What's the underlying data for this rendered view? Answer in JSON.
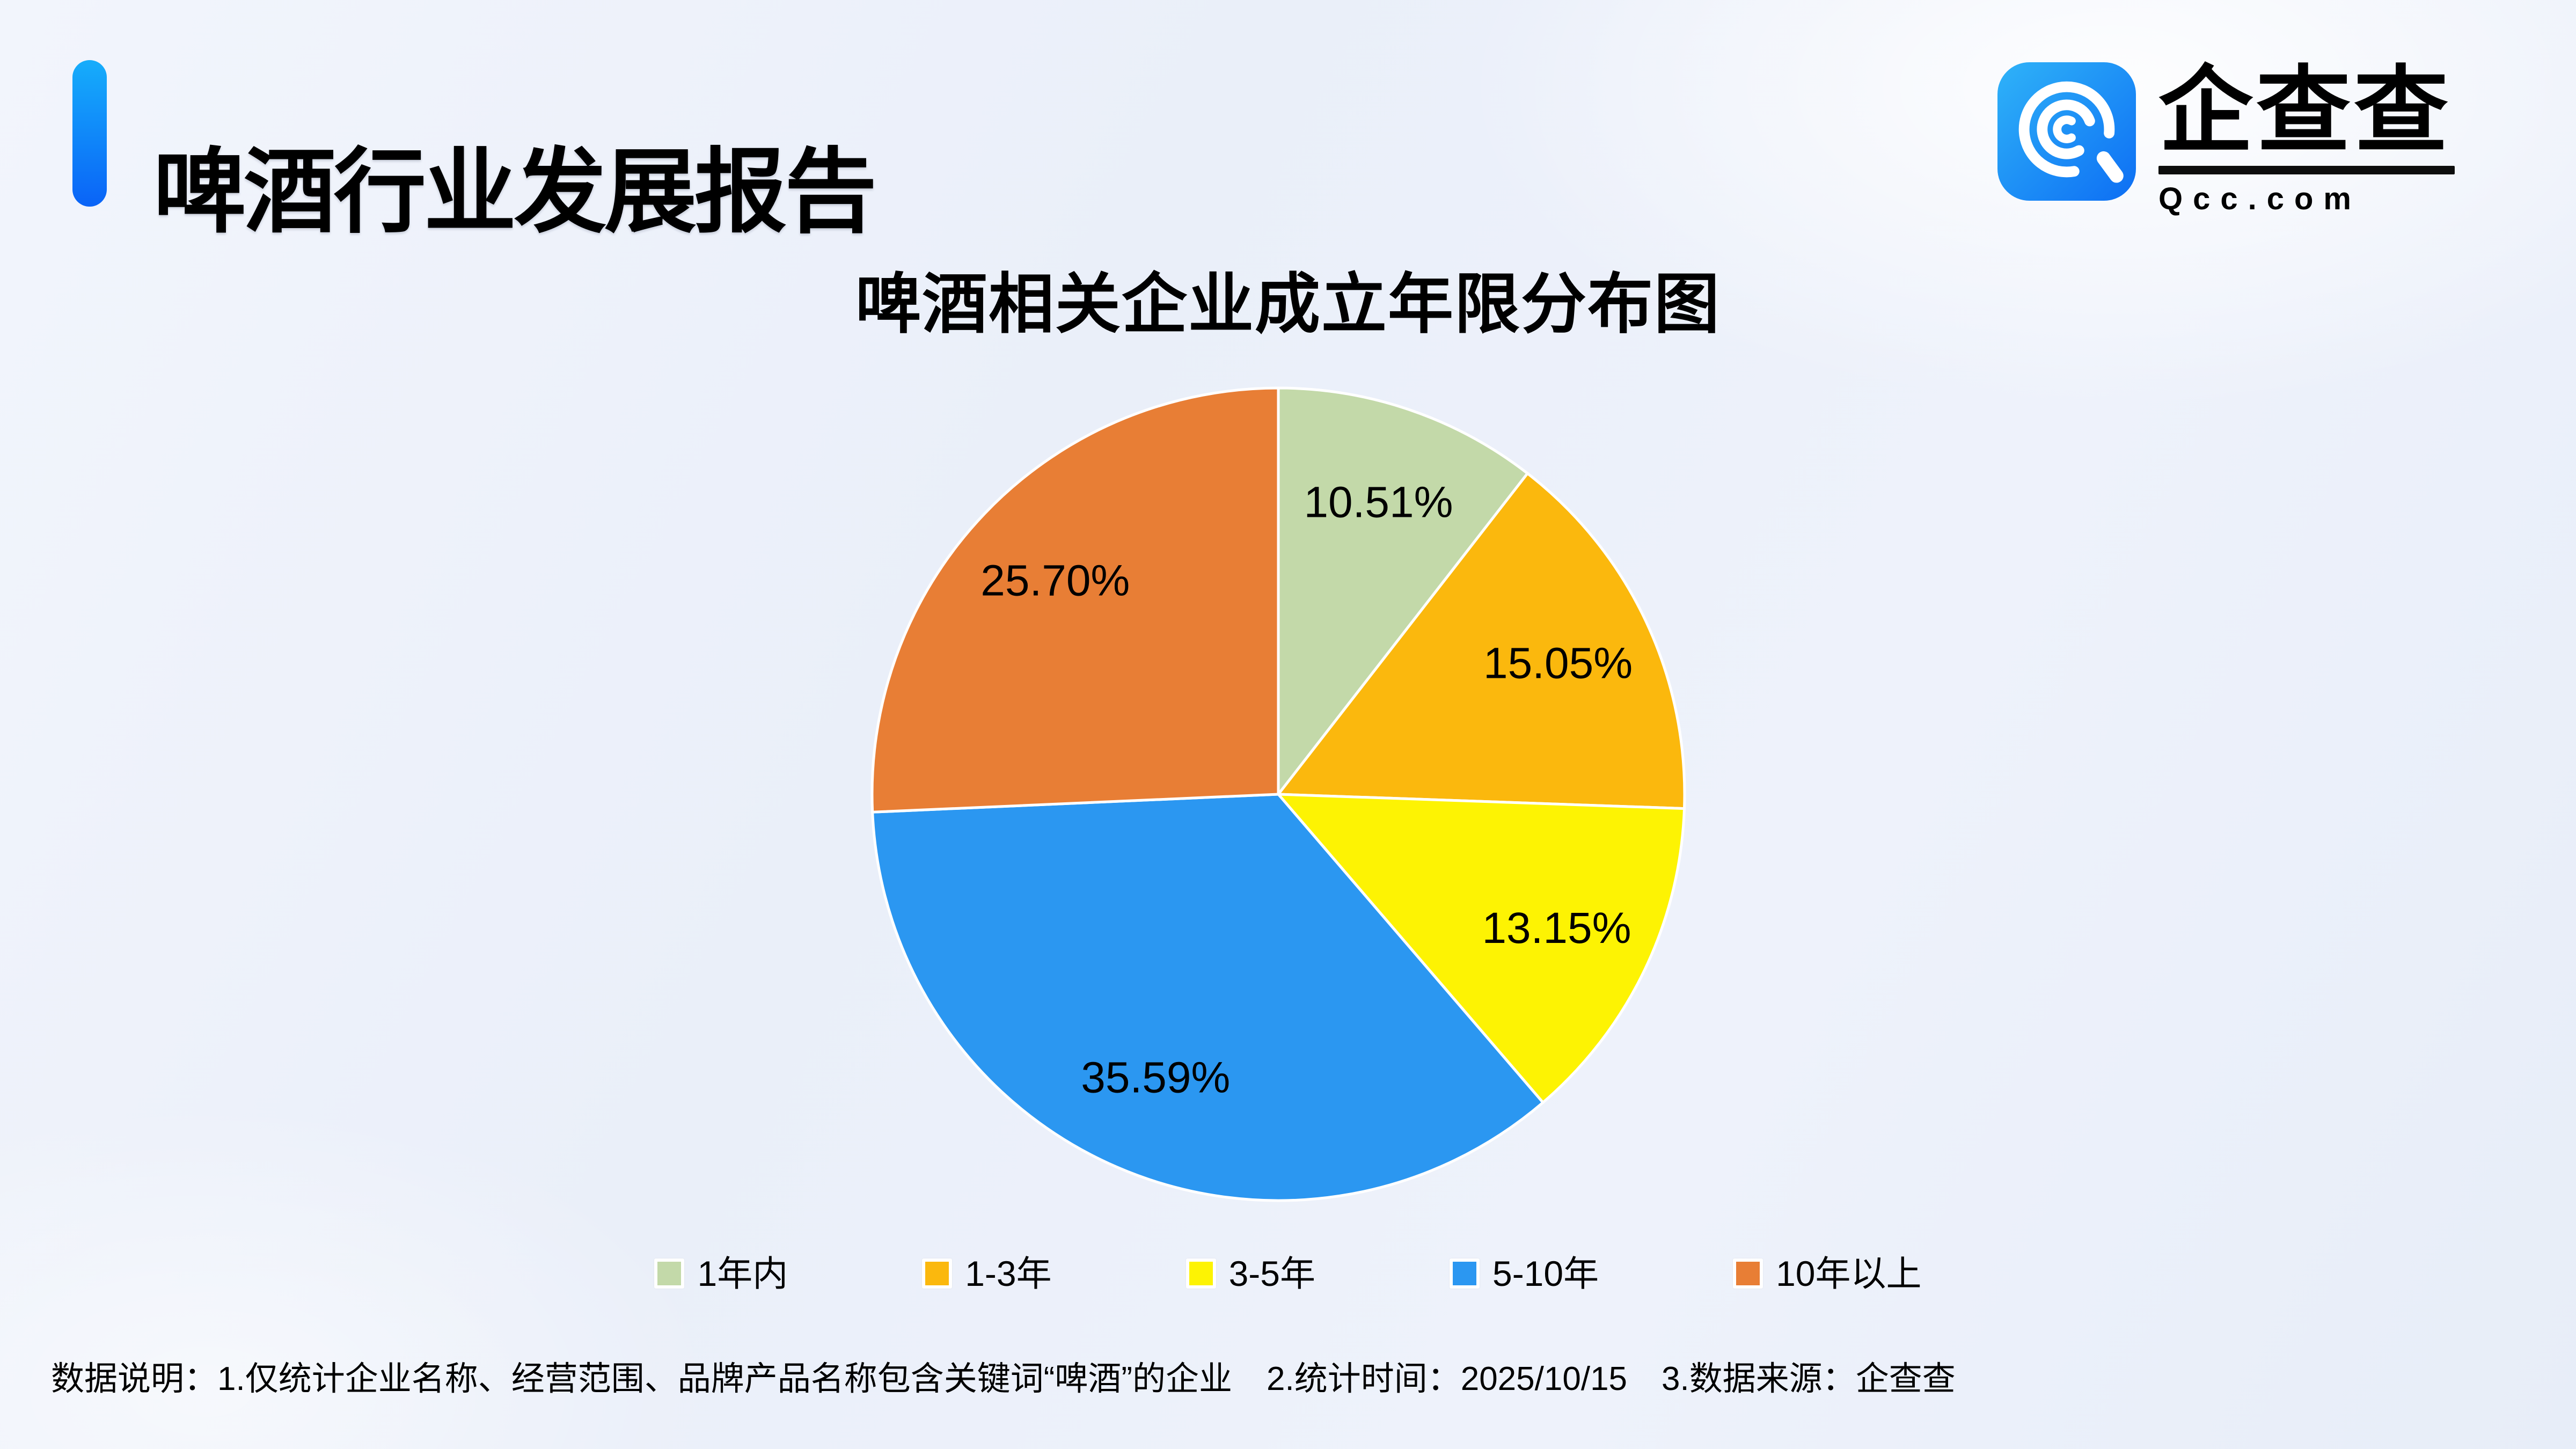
{
  "page": {
    "background_color": "#edf1fa"
  },
  "header": {
    "title": "啤酒行业发展报告",
    "accent_color_top": "#16adfb",
    "accent_color_bottom": "#0a63f7",
    "brand": {
      "name": "企查查",
      "domain": "Qcc.com",
      "icon": "qcc-magnifier-q-icon",
      "icon_color_top": "#2fb3f8",
      "icon_color_bottom": "#0d6ef4"
    }
  },
  "chart_data": {
    "type": "pie",
    "title": "啤酒相关企业成立年限分布图",
    "categories": [
      "1年内",
      "1-3年",
      "3-5年",
      "5-10年",
      "10年以上"
    ],
    "values": [
      10.51,
      15.05,
      13.15,
      35.59,
      25.7
    ],
    "labels": [
      "10.51%",
      "15.05%",
      "13.15%",
      "35.59%",
      "25.70%"
    ],
    "colors": [
      "#c3d9a9",
      "#fbb80d",
      "#fdf303",
      "#2b97f1",
      "#e87e35"
    ],
    "unit": "%",
    "start_angle": "12-oclock",
    "direction": "clockwise",
    "label_position": "inside",
    "legend_position": "bottom",
    "slice_border_color": "#ffffff"
  },
  "footer": {
    "notes": [
      "数据说明：1.仅统计企业名称、经营范围、品牌产品名称包含关键词“啤酒”的企业",
      "2.统计时间：2025/10/15",
      "3.数据来源：企查查"
    ]
  }
}
